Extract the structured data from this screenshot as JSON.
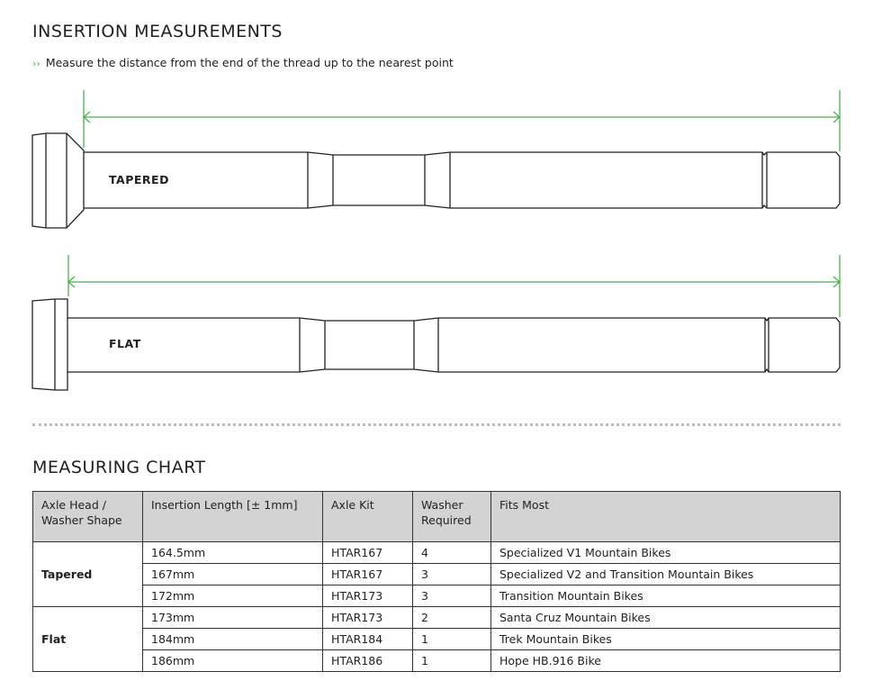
{
  "insertion": {
    "title": "INSERTION MEASUREMENTS",
    "instruction_icon": "double-chevron-right-icon",
    "instruction": "Measure the distance from the end of the thread up to the nearest point",
    "accent_color": "#4caf50",
    "axles": [
      {
        "label": "TAPERED"
      },
      {
        "label": "FLAT"
      }
    ]
  },
  "chart": {
    "title": "MEASURING CHART",
    "headers": [
      "Axle Head / Washer Shape",
      "Insertion Length [± 1mm]",
      "Axle Kit",
      "Washer Required",
      "Fits Most"
    ],
    "groups": [
      {
        "name": "Tapered",
        "rows": [
          {
            "length": "164.5mm",
            "kit": "HTAR167",
            "washer": "4",
            "fits": "Specialized V1 Mountain Bikes"
          },
          {
            "length": "167mm",
            "kit": "HTAR167",
            "washer": "3",
            "fits": "Specialized V2 and Transition Mountain Bikes"
          },
          {
            "length": "172mm",
            "kit": "HTAR173",
            "washer": "3",
            "fits": "Transition Mountain Bikes"
          }
        ]
      },
      {
        "name": "Flat",
        "rows": [
          {
            "length": "173mm",
            "kit": "HTAR173",
            "washer": "2",
            "fits": "Santa Cruz Mountain Bikes"
          },
          {
            "length": "184mm",
            "kit": "HTAR184",
            "washer": "1",
            "fits": "Trek Mountain Bikes"
          },
          {
            "length": "186mm",
            "kit": "HTAR186",
            "washer": "1",
            "fits": "Hope HB.916 Bike"
          }
        ]
      }
    ]
  }
}
